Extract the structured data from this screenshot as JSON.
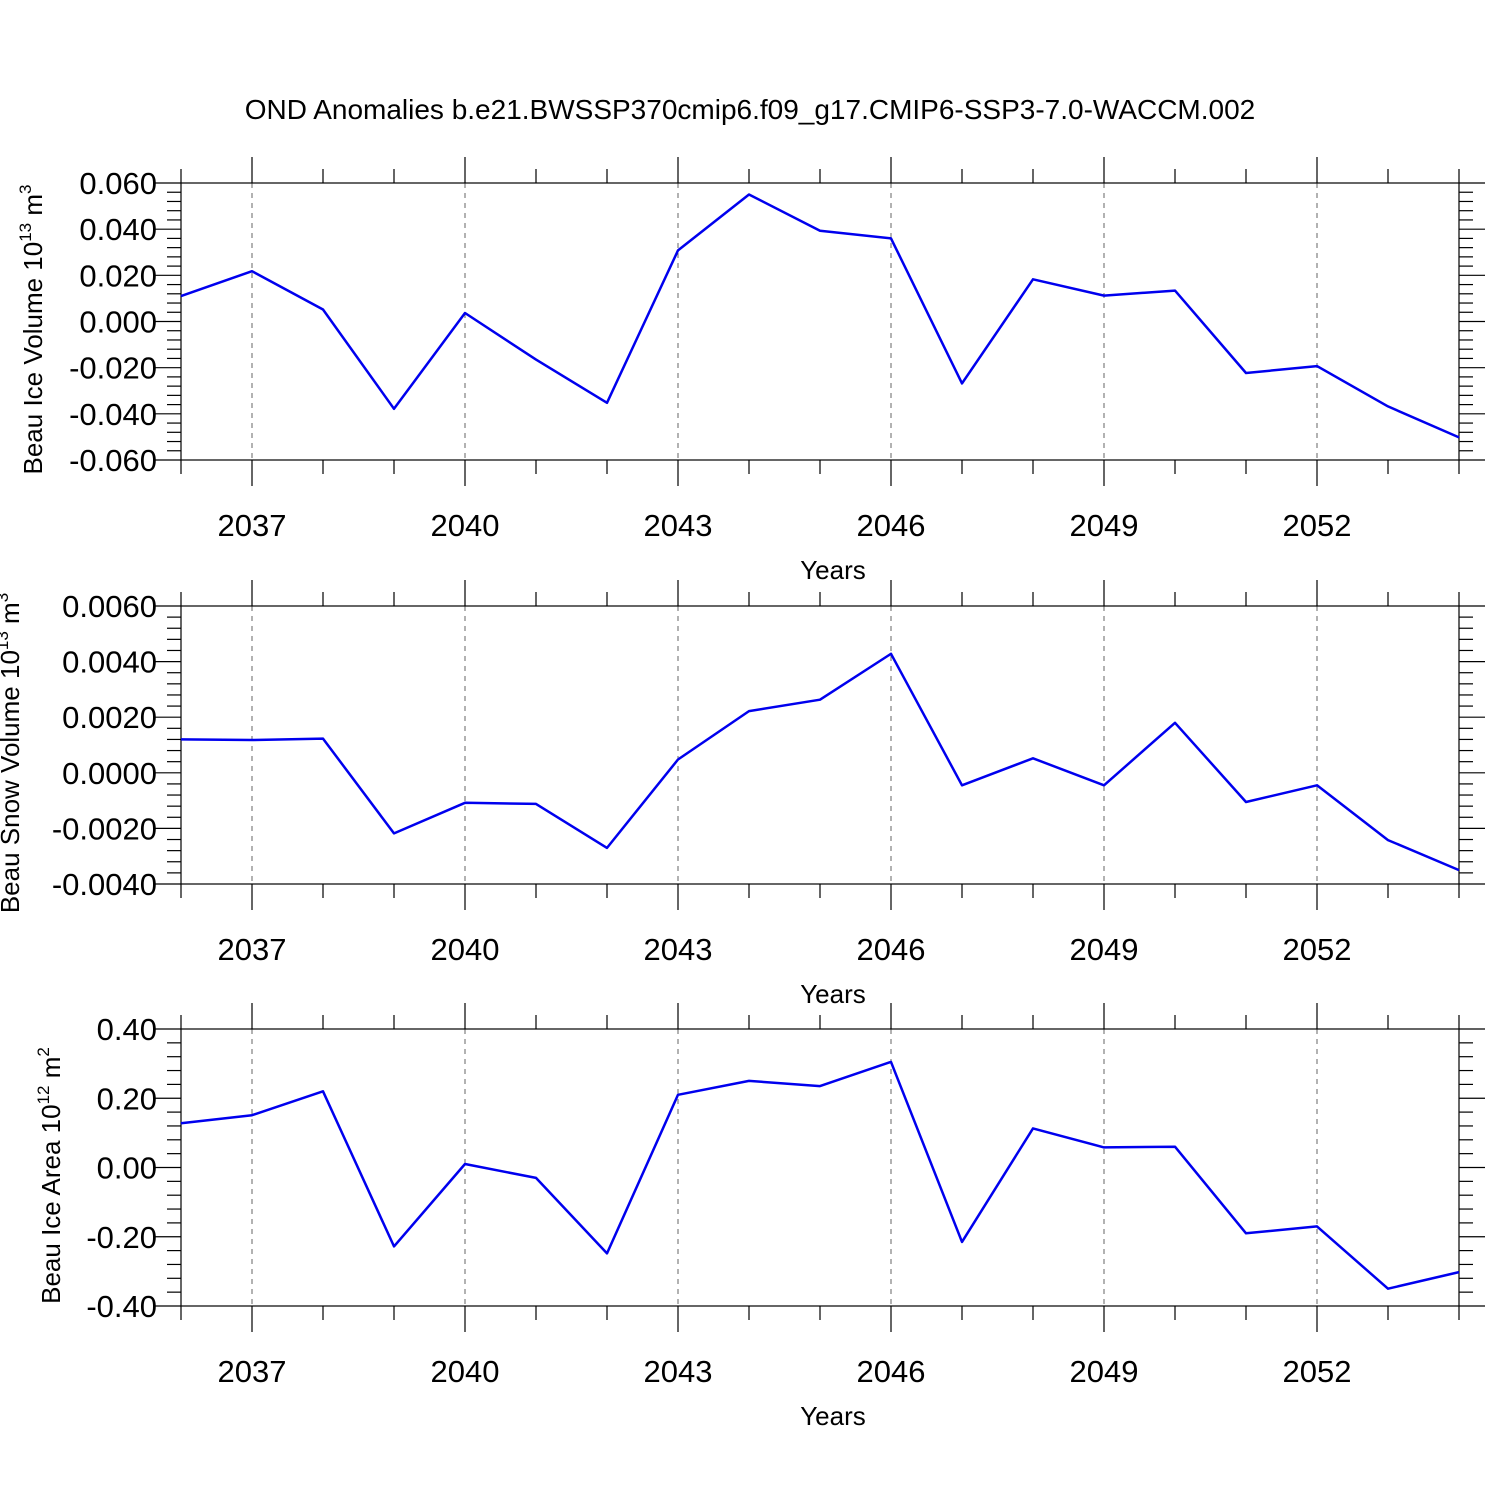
{
  "title": "OND Anomalies b.e21.BWSSP370cmip6.f09_g17.CMIP6-SSP3-7.0-WACCM.002",
  "line_color": "#0000ee",
  "chart_data": [
    {
      "type": "line",
      "xlabel": "Years",
      "ylabel_main": "Beau Ice Volume 10",
      "ylabel_sup": "13",
      "ylabel_unit": " m",
      "ylabel_unit_sup": "3",
      "xlim": [
        2036,
        2054
      ],
      "ylim": [
        -0.06,
        0.06
      ],
      "x_ticks": [
        2037,
        2040,
        2043,
        2046,
        2049,
        2052
      ],
      "x_tick_labels": [
        "2037",
        "2040",
        "2043",
        "2046",
        "2049",
        "2052"
      ],
      "y_ticks": [
        0.06,
        0.04,
        0.02,
        0.0,
        -0.02,
        -0.04,
        -0.06
      ],
      "y_tick_labels": [
        "0.060",
        "0.040",
        "0.020",
        "0.000",
        "-0.020",
        "-0.040",
        "-0.060"
      ],
      "x": [
        2036,
        2037,
        2038,
        2039,
        2040,
        2041,
        2042,
        2043,
        2044,
        2045,
        2046,
        2047,
        2048,
        2049,
        2050,
        2051,
        2052,
        2053,
        2054
      ],
      "values": [
        0.011,
        0.0218,
        0.0052,
        -0.0378,
        0.0037,
        -0.0165,
        -0.0352,
        0.0308,
        0.055,
        0.0393,
        0.036,
        -0.0268,
        0.0183,
        0.0112,
        0.0134,
        -0.0223,
        -0.0193,
        -0.0368,
        -0.0502
      ]
    },
    {
      "type": "line",
      "xlabel": "Years",
      "ylabel_main": "Beau Snow Volume 10",
      "ylabel_sup": "13",
      "ylabel_unit": " m",
      "ylabel_unit_sup": "3",
      "xlim": [
        2036,
        2054
      ],
      "ylim": [
        -0.004,
        0.006
      ],
      "x_ticks": [
        2037,
        2040,
        2043,
        2046,
        2049,
        2052
      ],
      "x_tick_labels": [
        "2037",
        "2040",
        "2043",
        "2046",
        "2049",
        "2052"
      ],
      "y_ticks": [
        0.006,
        0.004,
        0.002,
        0.0,
        -0.002,
        -0.004
      ],
      "y_tick_labels": [
        "0.0060",
        "0.0040",
        "0.0020",
        "0.0000",
        "-0.0020",
        "-0.0040"
      ],
      "x": [
        2036,
        2037,
        2038,
        2039,
        2040,
        2041,
        2042,
        2043,
        2044,
        2045,
        2046,
        2047,
        2048,
        2049,
        2050,
        2051,
        2052,
        2053,
        2054
      ],
      "values": [
        0.0012,
        0.00118,
        0.00123,
        -0.00218,
        -0.00108,
        -0.00112,
        -0.0027,
        0.00048,
        0.00222,
        0.00263,
        0.00428,
        -0.00045,
        0.00052,
        -0.00045,
        0.0018,
        -0.00105,
        -0.00045,
        -0.00242,
        -0.0035
      ]
    },
    {
      "type": "line",
      "xlabel": "Years",
      "ylabel_main": "Beau Ice Area 10",
      "ylabel_sup": "12",
      "ylabel_unit": " m",
      "ylabel_unit_sup": "2",
      "xlim": [
        2036,
        2054
      ],
      "ylim": [
        -0.4,
        0.4
      ],
      "x_ticks": [
        2037,
        2040,
        2043,
        2046,
        2049,
        2052
      ],
      "x_tick_labels": [
        "2037",
        "2040",
        "2043",
        "2046",
        "2049",
        "2052"
      ],
      "y_ticks": [
        0.4,
        0.2,
        0.0,
        -0.2,
        -0.4
      ],
      "y_tick_labels": [
        "0.40",
        "0.20",
        "0.00",
        "-0.20",
        "-0.40"
      ],
      "x": [
        2036,
        2037,
        2038,
        2039,
        2040,
        2041,
        2042,
        2043,
        2044,
        2045,
        2046,
        2047,
        2048,
        2049,
        2050,
        2051,
        2052,
        2053,
        2054
      ],
      "values": [
        0.128,
        0.151,
        0.22,
        -0.228,
        0.01,
        -0.03,
        -0.248,
        0.21,
        0.25,
        0.235,
        0.305,
        -0.215,
        0.113,
        0.058,
        0.06,
        -0.19,
        -0.17,
        -0.35,
        -0.302
      ]
    }
  ]
}
